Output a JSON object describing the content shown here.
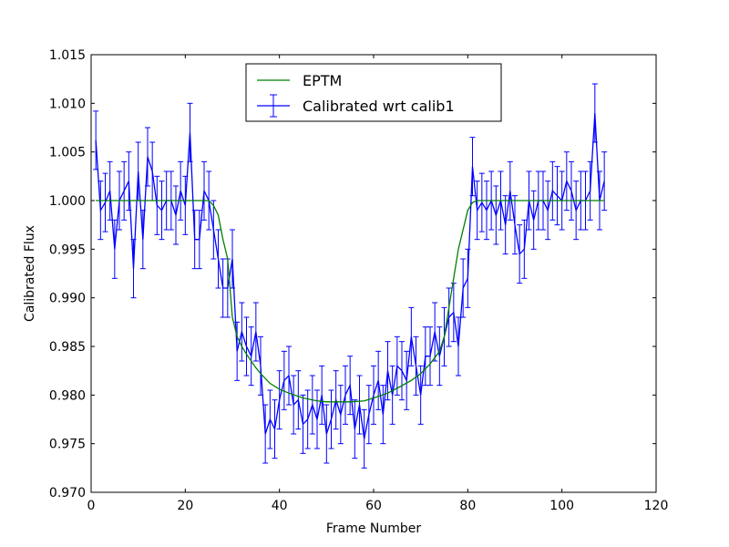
{
  "chart_data": {
    "type": "line",
    "title": "",
    "xlabel": "Frame Number",
    "ylabel": "Calibrated Flux",
    "xlim": [
      0,
      120
    ],
    "ylim": [
      0.97,
      1.015
    ],
    "xticks": [
      0,
      20,
      40,
      60,
      80,
      100,
      120
    ],
    "yticks": [
      0.97,
      0.975,
      0.98,
      0.985,
      0.99,
      0.995,
      1.0,
      1.005,
      1.01,
      1.015
    ],
    "xtick_labels": [
      "0",
      "20",
      "40",
      "60",
      "80",
      "100",
      "120"
    ],
    "ytick_labels": [
      "0.970",
      "0.975",
      "0.980",
      "0.985",
      "0.990",
      "0.995",
      "1.000",
      "1.005",
      "1.010",
      "1.015"
    ],
    "grid": false,
    "legend": {
      "placement": "upper-center",
      "entries": [
        {
          "name": "EPTM",
          "marker": "line"
        },
        {
          "name": "Calibrated wrt calib1",
          "marker": "errorbar"
        }
      ]
    },
    "series": [
      {
        "name": "EPTM",
        "color": "#008000",
        "style": "line",
        "x": [
          1,
          5,
          10,
          15,
          20,
          24,
          25,
          26,
          27,
          28,
          29,
          30,
          31,
          32,
          33,
          34,
          35,
          36,
          38,
          40,
          42,
          45,
          48,
          50,
          55,
          58,
          60,
          63,
          65,
          68,
          70,
          72,
          74,
          75,
          76,
          77,
          78,
          79,
          80,
          81,
          82,
          83,
          85,
          90,
          95,
          100,
          105,
          109
        ],
        "y": [
          1.0,
          1.0,
          1.0,
          1.0,
          1.0,
          1.0,
          1.0,
          0.9995,
          0.9985,
          0.996,
          0.994,
          0.988,
          0.986,
          0.985,
          0.9842,
          0.9835,
          0.9828,
          0.9822,
          0.9812,
          0.9806,
          0.9802,
          0.9797,
          0.9794,
          0.9793,
          0.9793,
          0.9794,
          0.9797,
          0.9802,
          0.9807,
          0.9815,
          0.9822,
          0.9832,
          0.9845,
          0.986,
          0.989,
          0.992,
          0.995,
          0.997,
          0.999,
          0.9998,
          1.0,
          1.0,
          1.0,
          1.0,
          1.0,
          1.0,
          1.0,
          1.0
        ]
      },
      {
        "name": "Calibrated wrt calib1",
        "color": "#0000ff",
        "style": "errorbar",
        "yerr": 0.003,
        "x": [
          1,
          2,
          3,
          4,
          5,
          6,
          7,
          8,
          9,
          10,
          11,
          12,
          13,
          14,
          15,
          16,
          17,
          18,
          19,
          20,
          21,
          22,
          23,
          24,
          25,
          26,
          27,
          28,
          29,
          30,
          31,
          32,
          33,
          34,
          35,
          36,
          37,
          38,
          39,
          40,
          41,
          42,
          43,
          44,
          45,
          46,
          47,
          48,
          49,
          50,
          51,
          52,
          53,
          54,
          55,
          56,
          57,
          58,
          59,
          60,
          61,
          62,
          63,
          64,
          65,
          66,
          67,
          68,
          69,
          70,
          71,
          72,
          73,
          74,
          75,
          76,
          77,
          78,
          79,
          80,
          81,
          82,
          83,
          84,
          85,
          86,
          87,
          88,
          89,
          90,
          91,
          92,
          93,
          94,
          95,
          96,
          97,
          98,
          99,
          100,
          101,
          102,
          103,
          104,
          105,
          106,
          107,
          108,
          109
        ],
        "y": [
          1.0062,
          0.999,
          0.9998,
          1.001,
          0.995,
          1.0,
          1.001,
          1.002,
          0.993,
          1.003,
          0.996,
          1.0045,
          1.003,
          0.9995,
          0.999,
          1.0,
          1.0,
          0.9985,
          1.001,
          0.9995,
          1.007,
          0.996,
          0.996,
          1.001,
          1.0,
          0.997,
          0.994,
          0.991,
          0.991,
          0.994,
          0.9845,
          0.9865,
          0.985,
          0.984,
          0.9865,
          0.983,
          0.976,
          0.9775,
          0.9765,
          0.9795,
          0.9815,
          0.982,
          0.979,
          0.9795,
          0.977,
          0.9775,
          0.979,
          0.9775,
          0.98,
          0.976,
          0.9775,
          0.9795,
          0.978,
          0.98,
          0.981,
          0.9765,
          0.979,
          0.9755,
          0.978,
          0.98,
          0.9815,
          0.978,
          0.9825,
          0.98,
          0.983,
          0.9825,
          0.9815,
          0.986,
          0.983,
          0.98,
          0.984,
          0.984,
          0.9865,
          0.984,
          0.986,
          0.988,
          0.9885,
          0.985,
          0.991,
          0.992,
          1.0035,
          0.999,
          0.9998,
          0.999,
          1.0,
          0.9985,
          1.0,
          0.9975,
          1.001,
          0.9975,
          0.9945,
          0.995,
          1.0,
          0.998,
          1.0,
          1.0,
          0.999,
          1.001,
          1.0005,
          1.0,
          1.002,
          1.001,
          0.999,
          1.0,
          1.0,
          1.001,
          1.009,
          1.0,
          1.002
        ]
      }
    ]
  }
}
